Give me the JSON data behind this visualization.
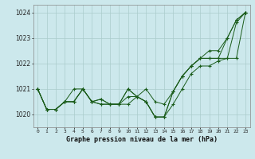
{
  "title": "Graphe pression niveau de la mer (hPa)",
  "background_color": "#cce8ec",
  "grid_color": "#aacccc",
  "line_color": "#1a5c1a",
  "ylim": [
    1019.5,
    1024.3
  ],
  "yticks": [
    1020,
    1021,
    1022,
    1023,
    1024
  ],
  "series": {
    "line1": [
      1021.0,
      1020.2,
      1020.2,
      1020.5,
      1020.5,
      1021.0,
      1020.5,
      1020.6,
      1020.4,
      1020.4,
      1021.0,
      1020.7,
      1020.5,
      1019.9,
      1019.9,
      1020.4,
      1021.0,
      1021.6,
      1021.9,
      1021.9,
      1022.1,
      1022.2,
      1023.6,
      1024.0
    ],
    "line2": [
      1021.0,
      1020.2,
      1020.2,
      1020.5,
      1021.0,
      1021.0,
      1020.5,
      1020.6,
      1020.4,
      1020.4,
      1020.7,
      1020.7,
      1020.5,
      1019.9,
      1019.9,
      1020.9,
      1021.5,
      1021.9,
      1022.2,
      1022.2,
      1022.2,
      1022.2,
      1022.2,
      1024.0
    ],
    "line3": [
      1021.0,
      1020.2,
      1020.2,
      1020.5,
      1020.5,
      1021.0,
      1020.5,
      1020.4,
      1020.4,
      1020.4,
      1020.4,
      1020.7,
      1021.0,
      1020.5,
      1020.4,
      1020.9,
      1021.5,
      1021.9,
      1022.2,
      1022.2,
      1022.2,
      1023.0,
      1023.7,
      1024.0
    ],
    "line4": [
      1021.0,
      1020.2,
      1020.2,
      1020.5,
      1020.5,
      1021.0,
      1020.5,
      1020.4,
      1020.4,
      1020.4,
      1021.0,
      1020.7,
      1020.5,
      1019.9,
      1019.9,
      1020.9,
      1021.5,
      1021.9,
      1022.2,
      1022.5,
      1022.5,
      1023.0,
      1023.7,
      1024.0
    ]
  }
}
